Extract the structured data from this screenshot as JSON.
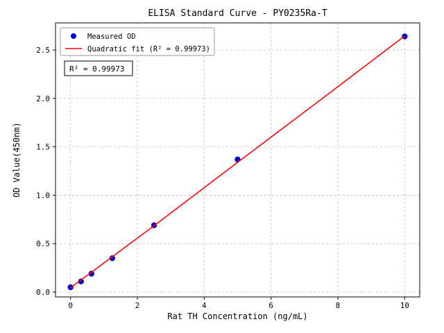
{
  "figure": {
    "title": "ELISA Standard Curve - PY0235Ra-T"
  },
  "chart_data": {
    "type": "scatter",
    "title": "ELISA Standard Curve - PY0235Ra-T",
    "xlabel": "Rat TH Concentration (ng/mL)",
    "ylabel": "OD Value(450nm)",
    "xlim": [
      -0.45,
      10.45
    ],
    "ylim": [
      -0.05,
      2.78
    ],
    "xticks": [
      0,
      2,
      4,
      6,
      8,
      10
    ],
    "xtick_labels": [
      "0",
      "2",
      "4",
      "6",
      "8",
      "10"
    ],
    "yticks": [
      0.0,
      0.5,
      1.0,
      1.5,
      2.0,
      2.5
    ],
    "ytick_labels": [
      "0.0",
      "0.5",
      "1.0",
      "1.5",
      "2.0",
      "2.5"
    ],
    "grid": true,
    "grid_color": "#bdbdbd",
    "series": [
      {
        "name": "Measured OD",
        "kind": "scatter",
        "color": "#0000cd",
        "x": [
          0,
          0.3125,
          0.625,
          1.25,
          2.5,
          5,
          10
        ],
        "y": [
          0.05,
          0.11,
          0.19,
          0.35,
          0.69,
          1.37,
          2.64
        ]
      },
      {
        "name": "Quadratic fit (R² = 0.99973)",
        "kind": "line",
        "color": "#ff0000",
        "x": [
          0,
          2.5,
          5,
          7.5,
          10
        ],
        "y": [
          0.045,
          0.685,
          1.34,
          1.99,
          2.645
        ]
      }
    ],
    "legend": {
      "position": "upper left",
      "entries": [
        "Measured OD",
        "Quadratic fit (R² = 0.99973)"
      ]
    },
    "annotation": "R² = 0.99973"
  }
}
